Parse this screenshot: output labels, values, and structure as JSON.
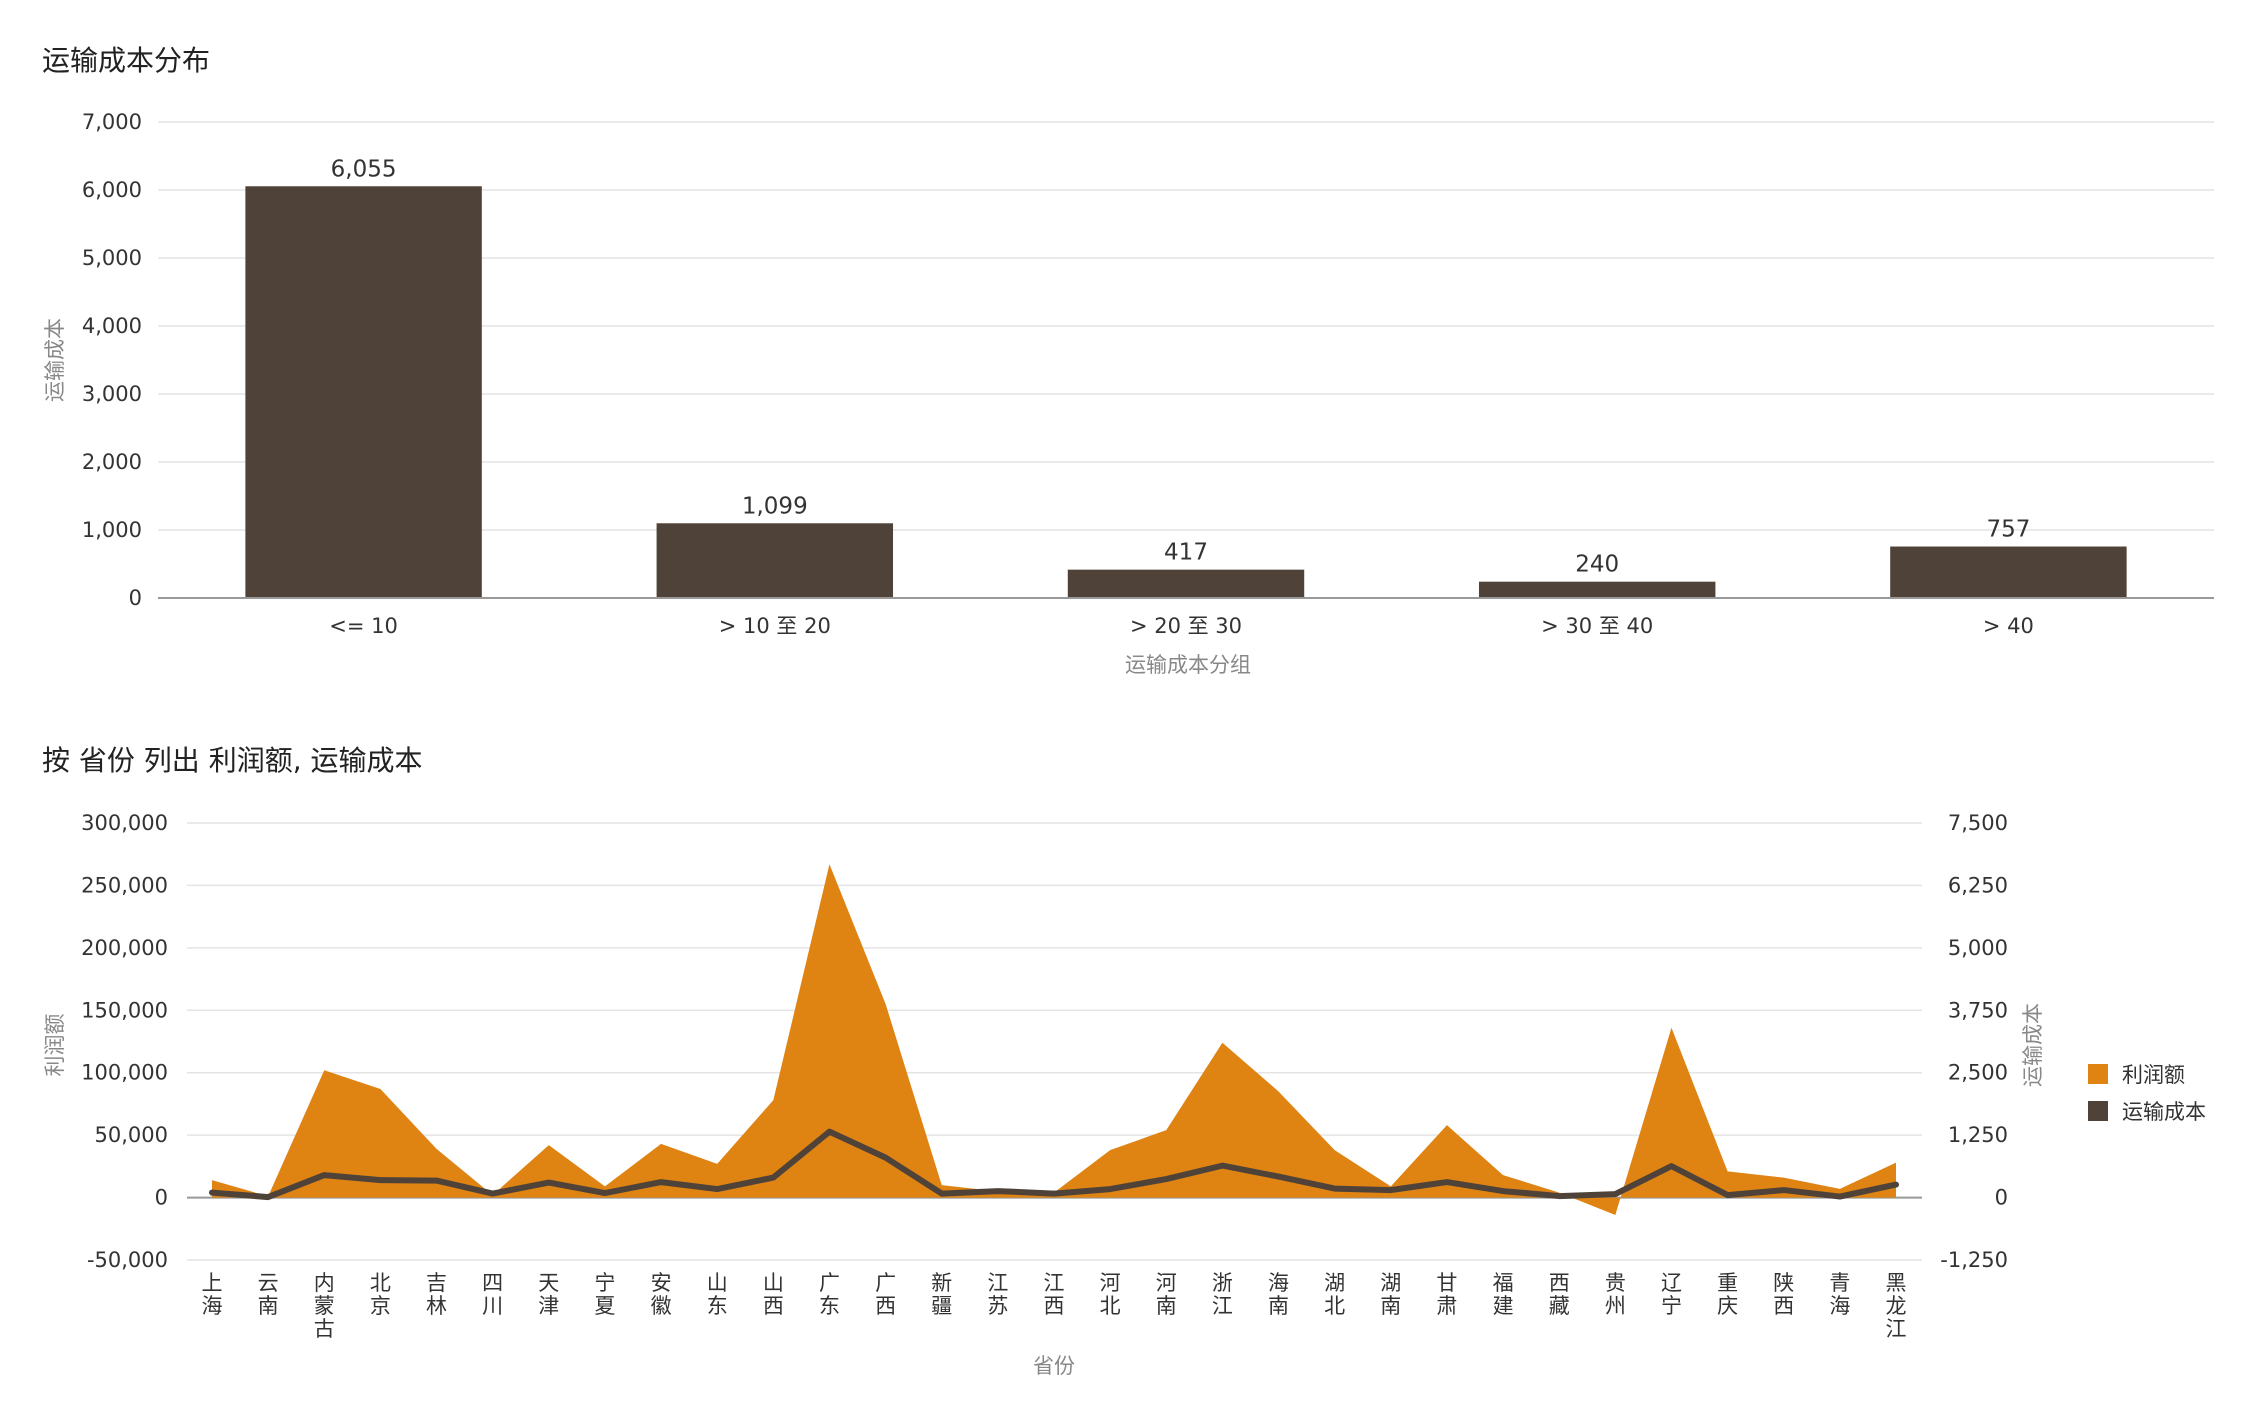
{
  "colors": {
    "bar": "#4f4339",
    "area": "#df8313",
    "line": "#4f4339",
    "grid": "#e4e4e4",
    "axis": "#999999"
  },
  "chart_data": [
    {
      "type": "bar",
      "title": "运输成本分布",
      "xlabel": "运输成本分组",
      "ylabel": "运输成本",
      "categories": [
        "<= 10",
        "> 10 至 20",
        "> 20 至 30",
        "> 30 至 40",
        "> 40"
      ],
      "values": [
        6055,
        1099,
        417,
        240,
        757
      ],
      "value_labels": [
        "6,055",
        "1,099",
        "417",
        "240",
        "757"
      ],
      "ylim": [
        0,
        7000
      ],
      "yticks": [
        0,
        1000,
        2000,
        3000,
        4000,
        5000,
        6000,
        7000
      ],
      "ytick_labels": [
        "0",
        "1,000",
        "2,000",
        "3,000",
        "4,000",
        "5,000",
        "6,000",
        "7,000"
      ],
      "grid": true,
      "legend": "none"
    },
    {
      "type": "area",
      "title": "按 省份 列出 利润额, 运输成本",
      "xlabel": "省份",
      "ylabel": "利润额",
      "y2label": "运输成本",
      "categories": [
        "上海",
        "云南",
        "内蒙古",
        "北京",
        "吉林",
        "四川",
        "天津",
        "宁夏",
        "安徽",
        "山东",
        "山西",
        "广东",
        "广西",
        "新疆",
        "江苏",
        "江西",
        "河北",
        "河南",
        "浙江",
        "海南",
        "湖北",
        "湖南",
        "甘肃",
        "福建",
        "西藏",
        "贵州",
        "辽宁",
        "重庆",
        "陕西",
        "青海",
        "黑龙江"
      ],
      "series": [
        {
          "name": "利润额",
          "type": "area",
          "axis": "left",
          "values": [
            14000,
            1000,
            102000,
            87000,
            39000,
            2000,
            42000,
            9000,
            43000,
            27000,
            78000,
            267000,
            155000,
            10000,
            5000,
            4000,
            38000,
            54000,
            124000,
            85000,
            38000,
            9000,
            58000,
            18000,
            4000,
            -14000,
            136000,
            21000,
            16000,
            7000,
            28000
          ]
        },
        {
          "name": "运输成本",
          "type": "line",
          "axis": "right",
          "values": [
            100,
            10,
            450,
            350,
            340,
            80,
            300,
            90,
            310,
            170,
            400,
            1320,
            800,
            80,
            130,
            80,
            170,
            370,
            640,
            420,
            180,
            150,
            310,
            130,
            30,
            70,
            630,
            50,
            150,
            20,
            260
          ]
        }
      ],
      "ylim": [
        -50000,
        300000
      ],
      "yticks": [
        -50000,
        0,
        50000,
        100000,
        150000,
        200000,
        250000,
        300000
      ],
      "ytick_labels": [
        "-50,000",
        "0",
        "50,000",
        "100,000",
        "150,000",
        "200,000",
        "250,000",
        "300,000"
      ],
      "y2lim": [
        -1250,
        7500
      ],
      "y2ticks": [
        -1250,
        0,
        1250,
        2500,
        3750,
        5000,
        6250,
        7500
      ],
      "y2tick_labels": [
        "-1,250",
        "0",
        "1,250",
        "2,500",
        "3,750",
        "5,000",
        "6,250",
        "7,500"
      ],
      "grid": true,
      "legend": "right"
    }
  ]
}
